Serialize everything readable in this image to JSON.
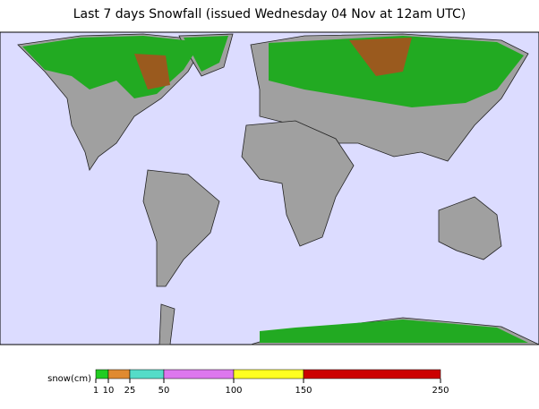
{
  "title": "Last 7 days Snowfall (issued Wednesday 04 Nov at 12am UTC)",
  "legend": {
    "label": "snow(cm)",
    "ticks": [
      1,
      10,
      25,
      50,
      100,
      150,
      250
    ],
    "colors": [
      "#22cc22",
      "#e08a30",
      "#55dcc8",
      "#dd77ee",
      "#ffff22",
      "#cc0000"
    ]
  }
}
